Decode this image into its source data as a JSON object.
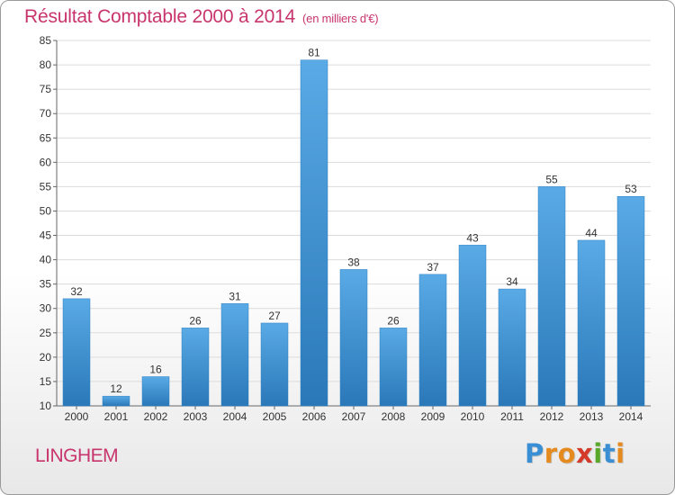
{
  "title": "Résultat Comptable 2000 à 2014",
  "unit_note": "(en milliers d'€)",
  "commune": "LINGHEM",
  "brand": {
    "name": "Proxiti",
    "letters": [
      "P",
      "r",
      "o",
      "x",
      "i",
      "t",
      "i"
    ],
    "colors": [
      "#3a8fd4",
      "#e58a1f",
      "#e58a1f",
      "#d43a2a",
      "#5aa82a",
      "#3a8fd4",
      "#e58a1f"
    ]
  },
  "colors": {
    "accent": "#c8356d",
    "bar_top": "#5aaae6",
    "bar_bottom": "#2a78b8",
    "grid": "#dcdcdc",
    "text": "#333333"
  },
  "chart_data": {
    "type": "bar",
    "categories": [
      "2000",
      "2001",
      "2002",
      "2003",
      "2004",
      "2005",
      "2006",
      "2007",
      "2008",
      "2009",
      "2010",
      "2011",
      "2012",
      "2013",
      "2014"
    ],
    "values": [
      32,
      12,
      16,
      26,
      31,
      27,
      81,
      38,
      26,
      37,
      43,
      34,
      55,
      44,
      53
    ],
    "ylim": [
      10,
      85
    ],
    "yticks": [
      10,
      15,
      20,
      25,
      30,
      35,
      40,
      45,
      50,
      55,
      60,
      65,
      70,
      75,
      80,
      85
    ],
    "grid": true,
    "data_labels": true
  }
}
